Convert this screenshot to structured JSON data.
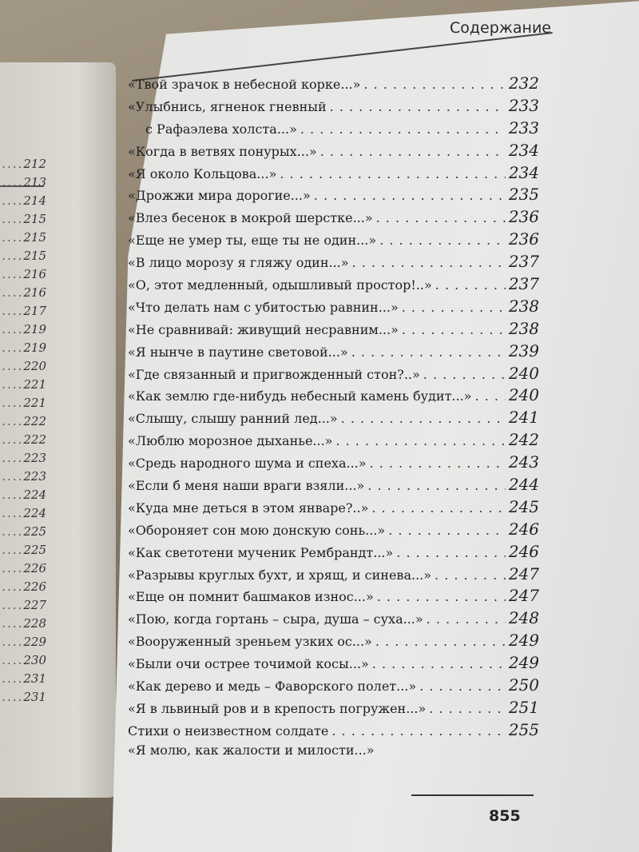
{
  "header": {
    "title": "Содержание"
  },
  "left_page": {
    "page_numbers": [
      "212",
      "213",
      "214",
      "215",
      "215",
      "215",
      "216",
      "216",
      "217",
      "219",
      "219",
      "220",
      "221",
      "221",
      "222",
      "222",
      "223",
      "223",
      "224",
      "224",
      "225",
      "225",
      "226",
      "226",
      "227",
      "228",
      "229",
      "230",
      "231",
      "231"
    ]
  },
  "entries": [
    {
      "title": "«Твой зрачок в небесной корке...»",
      "page": "232"
    },
    {
      "title": "«Улыбнись, ягненок гневный",
      "page": "233"
    },
    {
      "title": "с Рафаэлева холста...»",
      "page": "233",
      "indent": true
    },
    {
      "title": "«Когда в ветвях понурых...»",
      "page": "234"
    },
    {
      "title": "«Я около Кольцова...»",
      "page": "234"
    },
    {
      "title": "«Дрожжи мира дорогие...»",
      "page": "235"
    },
    {
      "title": "«Влез бесенок в мокрой шерстке...»",
      "page": "236"
    },
    {
      "title": "«Еще не умер ты, еще ты не один...»",
      "page": "236"
    },
    {
      "title": "«В лицо морозу я гляжу один...»",
      "page": "237"
    },
    {
      "title": "«О, этот медленный, одышливый простор!..»",
      "page": "237"
    },
    {
      "title": "«Что делать нам с убитостью равнин...»",
      "page": "238"
    },
    {
      "title": "«Не сравнивай: живущий несравним...»",
      "page": "238"
    },
    {
      "title": "«Я нынче в паутине световой...»",
      "page": "239"
    },
    {
      "title": "«Где связанный и пригвожденный стон?..»",
      "page": "240"
    },
    {
      "title": "«Как землю где-нибудь небесный камень будит...»",
      "page": "240"
    },
    {
      "title": "«Слышу, слышу ранний лед...»",
      "page": "241"
    },
    {
      "title": "«Люблю морозное дыханье...»",
      "page": "242"
    },
    {
      "title": "«Средь народного шума и спеха...»",
      "page": "243"
    },
    {
      "title": "«Если б меня наши враги взяли...»",
      "page": "244"
    },
    {
      "title": "«Куда мне деться в этом январе?..»",
      "page": "245"
    },
    {
      "title": "«Обороняет сон мою донскую сонь...»",
      "page": "246"
    },
    {
      "title": "«Как светотени мученик Рембрандт...»",
      "page": "246"
    },
    {
      "title": "«Разрывы круглых бухт, и хрящ, и синева...»",
      "page": "247"
    },
    {
      "title": "«Еще он помнит башмаков износ...»",
      "page": "247"
    },
    {
      "title": "«Пою, когда гортань – сыра, душа – суха...»",
      "page": "248"
    },
    {
      "title": "«Вооруженный зреньем узких ос...»",
      "page": "249"
    },
    {
      "title": "«Были очи острее точимой косы...»",
      "page": "249"
    },
    {
      "title": "«Как дерево и медь – Фаворского полет...»",
      "page": "250"
    },
    {
      "title": "«Я в львиный ров и в крепость погружен...»",
      "page": "251"
    },
    {
      "title": "Стихи о неизвестном солдате",
      "page": "255"
    },
    {
      "title": "«Я молю, как жалости и милости...»",
      "page": ""
    }
  ],
  "footer": {
    "folio": "855"
  }
}
